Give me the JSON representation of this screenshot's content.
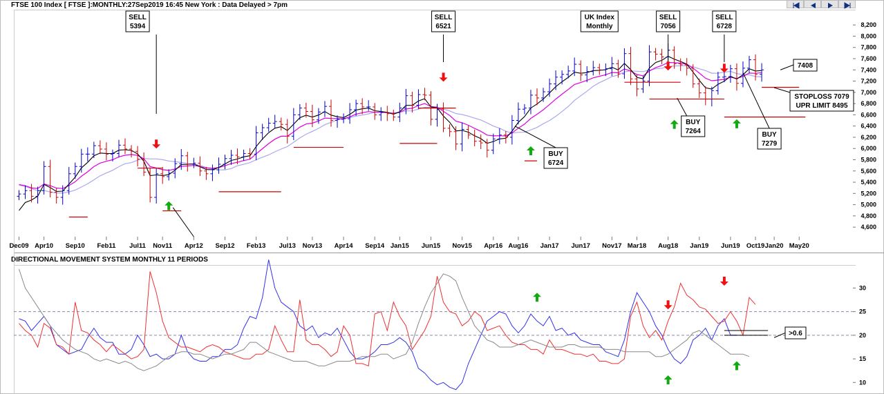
{
  "header": {
    "title": "FTSE 100 Index [ FTSE ]:MONTHLY:27Sep2019 16:45 New York : Data Delayed > 7pm",
    "nav": [
      "first-icon",
      "prev-icon",
      "next-icon",
      "last-icon"
    ]
  },
  "indicator": {
    "title": "DIRECTIONAL MOVEMENT SYSTEM MONTHLY 11 PERIODS"
  },
  "colors": {
    "up_bar": "#0000cc",
    "down_bar": "#cc0000",
    "ma_fast": "#000000",
    "ma_mid": "#dd00dd",
    "ma_slow": "#a8a8f0",
    "plus_di": "#3030ee",
    "minus_di": "#ee3030",
    "adx": "#888888",
    "buy_arrow": "#11aa11",
    "sell_arrow": "#ee1111"
  },
  "chart_data": [
    {
      "type": "bar",
      "name": "price",
      "title": "FTSE 100 Index [ FTSE ]:MONTHLY:27Sep2019 16:45 New York : Data Delayed > 7pm",
      "x_tick_labels": [
        "Dec09",
        "Apr10",
        "Sep10",
        "Feb11",
        "Jul11",
        "Nov11",
        "Apr12",
        "Sep12",
        "Feb13",
        "Jul13",
        "Nov13",
        "Apr14",
        "Sep14",
        "Jan15",
        "Jun15",
        "Nov15",
        "Apr16",
        "Aug16",
        "Jan17",
        "Jun17",
        "Nov17",
        "Mar18",
        "Aug18",
        "Jan19",
        "Jun19",
        "Oct19",
        "Jan20",
        "May20"
      ],
      "x_tick_months": [
        0,
        4,
        9,
        14,
        19,
        23,
        28,
        33,
        38,
        43,
        47,
        52,
        57,
        61,
        66,
        71,
        76,
        80,
        85,
        90,
        95,
        99,
        104,
        109,
        114,
        118,
        121,
        125
      ],
      "y_ticks": [
        4600,
        4800,
        5000,
        5200,
        5400,
        5600,
        5800,
        6000,
        6200,
        6400,
        6600,
        6800,
        7000,
        7200,
        7400,
        7600,
        7800,
        8000,
        8200
      ],
      "ylim": [
        4430,
        8300
      ],
      "x_start": "Dec09",
      "closes": [
        5190,
        5250,
        5150,
        5250,
        5680,
        5220,
        5130,
        5250,
        5550,
        5680,
        5900,
        5900,
        6050,
        5990,
        5900,
        5910,
        6060,
        5990,
        5950,
        5810,
        5580,
        5130,
        5550,
        5500,
        5560,
        5730,
        5870,
        5720,
        5740,
        5600,
        5550,
        5620,
        5720,
        5820,
        5880,
        5850,
        5910,
        5900,
        6280,
        6370,
        6450,
        6480,
        6430,
        6220,
        6600,
        6720,
        6660,
        6510,
        6650,
        6750,
        6500,
        6520,
        6530,
        6690,
        6800,
        6740,
        6740,
        6600,
        6640,
        6620,
        6560,
        6720,
        6940,
        6770,
        6960,
        6950,
        6520,
        6700,
        6360,
        6300,
        6080,
        6340,
        6240,
        6130,
        6100,
        5970,
        6170,
        6240,
        6200,
        6500,
        6700,
        6720,
        6950,
        6900,
        7010,
        7150,
        7270,
        7320,
        7380,
        7500,
        7310,
        7370,
        7440,
        7400,
        7420,
        7510,
        7330,
        7690,
        7240,
        7060,
        7200,
        7720,
        7680,
        7630,
        7750,
        7510,
        7490,
        7430,
        7150,
        6990,
        6880,
        7030,
        7270,
        7280,
        7420,
        7160,
        7430,
        7580,
        7320,
        7400
      ],
      "signals": [
        {
          "type": "SELL",
          "label": "SELL",
          "value": "5394",
          "month": 19
        },
        {
          "type": "BUY",
          "month": 21
        },
        {
          "type": "SELL",
          "label": "SELL",
          "value": "6521",
          "month": 66
        },
        {
          "type": "BUY",
          "label": "BUY",
          "value": "6724",
          "month": 79
        },
        {
          "type": "SELL",
          "label": "SELL",
          "value": "7056",
          "month": 99
        },
        {
          "type": "BUY",
          "label": "BUY",
          "value": "7264",
          "month": 99
        },
        {
          "type": "SELL",
          "label": "SELL",
          "value": "6728",
          "month": 108
        },
        {
          "type": "BUY",
          "label": "BUY",
          "value": "7279",
          "month": 112
        }
      ],
      "labels": {
        "uk_index": [
          "UK Index",
          "Monthly"
        ],
        "last_price": "7408",
        "stoploss": "STOPLOSS 7079",
        "upper_limit": "UPR LIMIT 8495"
      }
    },
    {
      "type": "line",
      "name": "directional-movement",
      "title": "DIRECTIONAL MOVEMENT SYSTEM MONTHLY 11 PERIODS",
      "y_ticks": [
        10,
        15,
        20,
        25,
        30
      ],
      "ylim": [
        8,
        34
      ],
      "ref_lines": [
        20,
        25
      ],
      "series": [
        {
          "key": "plus_di",
          "values": [
            23.5,
            23,
            21,
            22.5,
            24,
            22,
            18,
            17,
            16,
            16.5,
            17,
            19.5,
            21.5,
            19.5,
            18.5,
            18.5,
            16,
            16,
            17,
            20,
            18,
            15.5,
            16,
            15,
            15,
            16,
            20,
            16.5,
            15,
            14.5,
            14.5,
            15.5,
            15.5,
            17,
            17,
            18,
            21.5,
            24,
            23.5,
            28,
            36,
            30,
            27,
            26,
            25,
            22,
            21,
            22,
            19.5,
            20.5,
            20,
            21.5,
            19,
            16.5,
            15,
            15,
            15.5,
            16.5,
            18,
            18,
            18.5,
            19.5,
            18.5,
            16.5,
            13,
            12,
            10.5,
            9.5,
            10,
            9,
            8.5,
            10,
            14,
            17,
            20,
            23,
            24,
            25,
            24.5,
            22,
            20.5,
            22,
            24.5,
            23,
            22,
            24,
            21,
            21.5,
            20,
            20.5,
            19,
            18.5,
            18,
            18,
            16.5,
            16,
            15.5,
            19,
            25,
            29,
            27,
            25,
            22,
            20,
            17,
            15,
            14,
            15.5,
            19,
            20,
            21.5,
            19,
            22,
            23.5,
            20,
            20
          ]
        },
        {
          "key": "minus_di",
          "values": [
            22.5,
            21,
            20,
            17.5,
            22.5,
            21.5,
            18,
            17.5,
            16,
            27,
            21,
            20.5,
            19,
            18,
            16.5,
            18,
            17,
            16,
            15,
            15.5,
            17,
            33.5,
            29,
            23,
            19.5,
            18.5,
            17.5,
            17.5,
            17,
            16.5,
            17.5,
            18,
            17.5,
            16.5,
            16,
            15.5,
            15,
            15,
            16,
            16,
            17,
            22,
            19,
            16.5,
            16.5,
            27.5,
            19,
            18,
            18,
            17,
            15.5,
            16.5,
            22,
            20,
            14,
            14,
            13.5,
            24.5,
            25,
            21,
            27,
            24,
            22,
            17,
            19,
            21,
            24,
            32.5,
            27,
            25,
            24.5,
            22,
            23,
            25,
            24,
            21,
            21.5,
            22,
            20,
            18.5,
            18,
            18,
            17,
            17,
            16,
            19,
            17,
            17,
            16.5,
            16,
            16,
            15.5,
            16,
            14.5,
            14.5,
            14,
            14,
            15,
            24,
            27,
            22,
            19.5,
            21,
            19,
            23,
            26,
            31,
            28.5,
            27.5,
            26,
            25.5,
            24,
            22.5,
            23,
            25,
            23,
            20,
            28,
            26.5
          ]
        },
        {
          "key": "adx",
          "values": [
            34,
            30,
            28,
            26,
            24,
            22,
            20.5,
            19,
            18,
            17,
            16.5,
            16,
            15,
            14.5,
            15,
            14.5,
            14,
            14.5,
            14,
            13,
            12.5,
            13,
            13.5,
            14.5,
            15.5,
            16,
            16.5,
            16.5,
            16,
            16,
            15.5,
            15,
            15.5,
            16,
            16,
            16.5,
            17,
            18.5,
            18.5,
            17.5,
            16.5,
            16,
            15.5,
            15,
            14.5,
            14.5,
            14.5,
            14,
            13.5,
            13.5,
            14,
            14.5,
            14.5,
            14.5,
            15,
            15.5,
            15.5,
            15.5,
            16,
            16,
            15,
            15.5,
            16,
            18.5,
            22.5,
            26,
            29,
            31,
            33,
            32.5,
            31.5,
            28,
            25,
            22,
            20.5,
            19,
            18.5,
            17.5,
            17.5,
            17.5,
            18,
            18.5,
            19,
            18.5,
            18,
            17.5,
            17.5,
            17.5,
            18,
            18,
            17.5,
            17.5,
            17.5,
            17.5,
            17,
            17,
            17,
            16.5,
            16.5,
            16.5,
            16.5,
            16.5,
            15.5,
            15.5,
            16,
            17,
            18,
            19,
            20.5,
            21,
            20,
            19,
            18,
            17,
            16,
            16,
            16,
            15.5
          ]
        }
      ],
      "signals": [
        {
          "type": "SELL",
          "month": 99
        },
        {
          "type": "SELL",
          "month": 108
        },
        {
          "type": "BUY",
          "month": 79
        },
        {
          "type": "BUY",
          "month": 99
        },
        {
          "type": "BUY",
          "month": 110
        }
      ],
      "labels": {
        "threshold": ">0.6"
      }
    }
  ]
}
